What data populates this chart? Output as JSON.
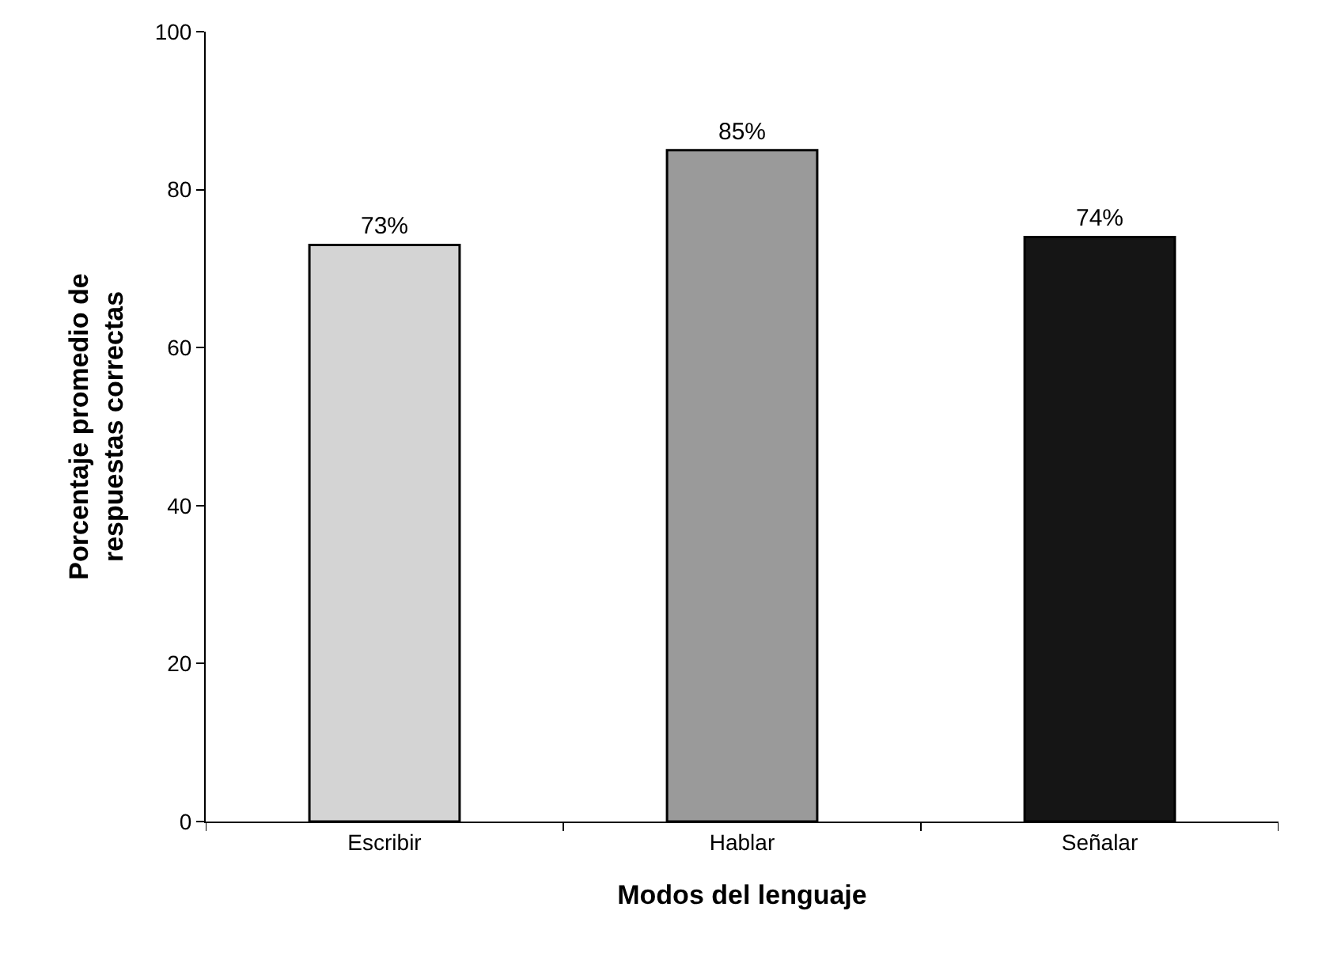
{
  "chart_data": {
    "type": "bar",
    "xlabel": "Modos del lenguaje",
    "ylabel": "Porcentaje promedio de respuestas correctas",
    "categories": [
      "Escribir",
      "Hablar",
      "Señalar"
    ],
    "values": [
      73,
      85,
      74
    ],
    "value_labels": [
      "73%",
      "85%",
      "74%"
    ],
    "colors": [
      "#d4d4d4",
      "#9a9a9a",
      "#151515"
    ],
    "ylim": [
      0,
      100
    ],
    "yticks": [
      0,
      20,
      40,
      60,
      80,
      100
    ]
  }
}
